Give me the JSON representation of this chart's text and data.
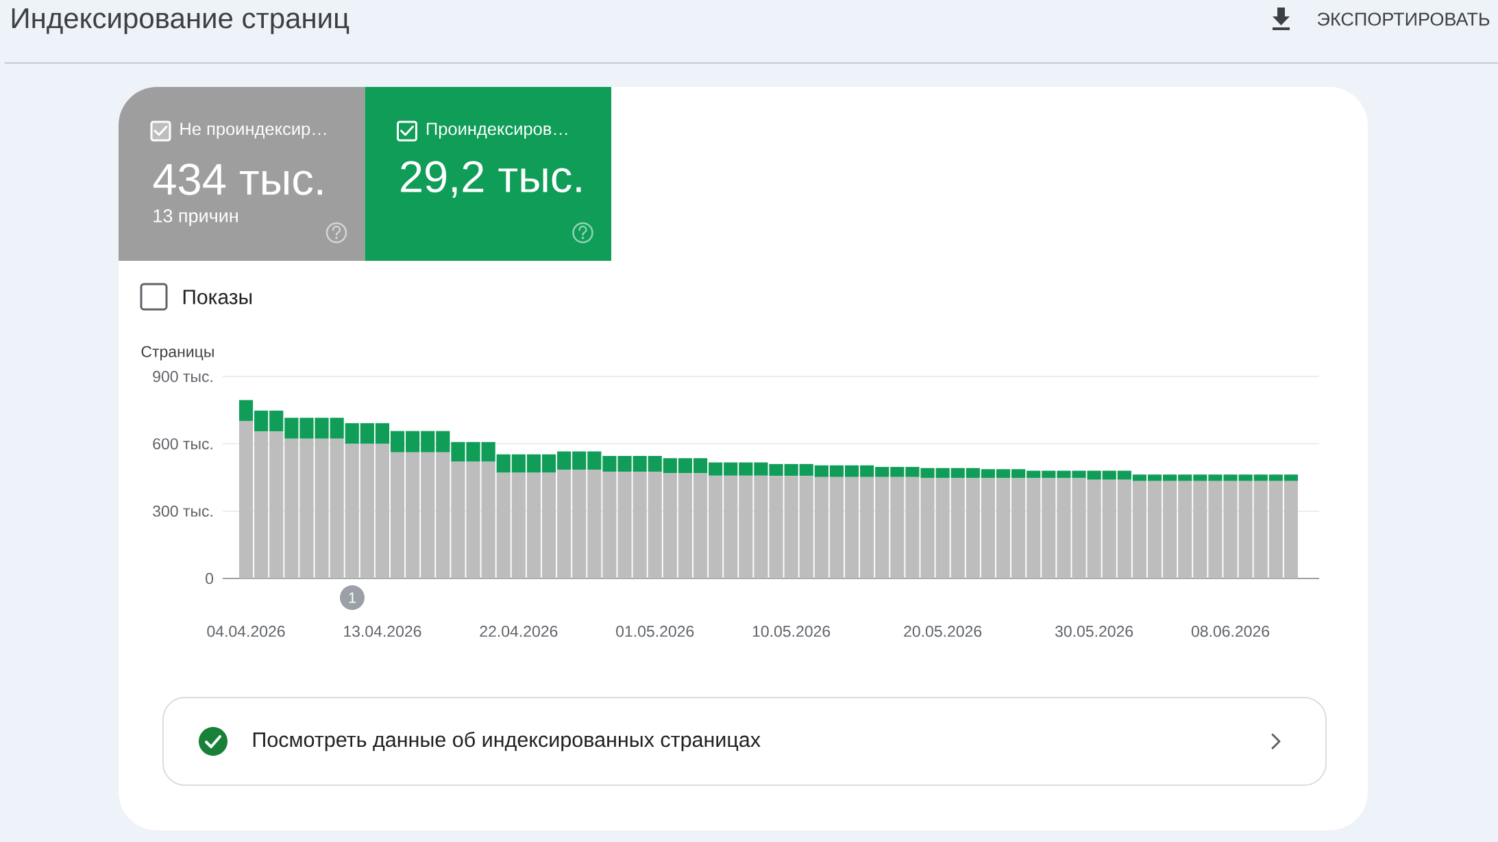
{
  "chart_data": {
    "type": "bar",
    "title": "Индексирование страниц",
    "ylabel": "Страницы",
    "categories": [
      "04.04.2026",
      null,
      null,
      null,
      null,
      null,
      null,
      null,
      null,
      "13.04.2026",
      null,
      null,
      null,
      null,
      null,
      null,
      null,
      null,
      "22.04.2026",
      null,
      null,
      null,
      null,
      null,
      null,
      null,
      null,
      "01.05.2026",
      null,
      null,
      null,
      null,
      null,
      null,
      null,
      null,
      "10.05.2026",
      null,
      null,
      null,
      null,
      null,
      null,
      null,
      null,
      null,
      "20.05.2026",
      null,
      null,
      null,
      null,
      null,
      null,
      null,
      null,
      null,
      "30.05.2026",
      null,
      null,
      null,
      null,
      null,
      null,
      null,
      null,
      "08.06.2026",
      null,
      null,
      null,
      null
    ],
    "series": [
      {
        "name": "Не проиндексир…",
        "color": "#bdbdbd",
        "values": [
          702,
          655,
          655,
          623,
          623,
          623,
          623,
          600,
          600,
          600,
          562,
          562,
          562,
          562,
          520,
          520,
          520,
          471,
          471,
          471,
          471,
          485,
          485,
          485,
          476,
          476,
          476,
          476,
          469,
          469,
          469,
          458,
          458,
          458,
          458,
          457,
          457,
          457,
          452,
          452,
          452,
          452,
          452,
          452,
          452,
          447,
          447,
          447,
          447,
          447,
          447,
          447,
          447,
          447,
          447,
          447,
          440,
          440,
          440,
          434,
          434,
          434,
          434,
          434,
          434,
          434,
          434,
          434,
          434,
          434
        ]
      },
      {
        "name": "Проиндексиров…",
        "color": "#0f9d58",
        "values": [
          93,
          93,
          93,
          93,
          93,
          93,
          93,
          92,
          92,
          92,
          95,
          95,
          95,
          95,
          88,
          88,
          88,
          82,
          82,
          82,
          82,
          81,
          81,
          81,
          70,
          70,
          70,
          70,
          67,
          67,
          67,
          59,
          59,
          59,
          59,
          53,
          53,
          53,
          52,
          52,
          52,
          52,
          45,
          45,
          45,
          45,
          45,
          45,
          45,
          40,
          40,
          40,
          33,
          33,
          33,
          33,
          40,
          40,
          40,
          29,
          29,
          29,
          29,
          29,
          29,
          29,
          29,
          29,
          29,
          29
        ]
      }
    ],
    "stacked": true,
    "ylim": [
      0,
      900
    ],
    "yticks": [
      0,
      {
        "value": 300,
        "label": "300 тыс."
      },
      {
        "value": 600,
        "label": "600 тыс."
      },
      {
        "value": 900,
        "label": "900 тыс."
      }
    ],
    "grid": "y",
    "legend": "top left",
    "annotations": [
      "434 тыс.",
      "13 причин",
      "29,2 тыс.",
      "Показы",
      "1",
      "ЭКСПОРТИРОВАТЬ",
      "Посмотреть данные об индексированных страницах"
    ]
  }
}
